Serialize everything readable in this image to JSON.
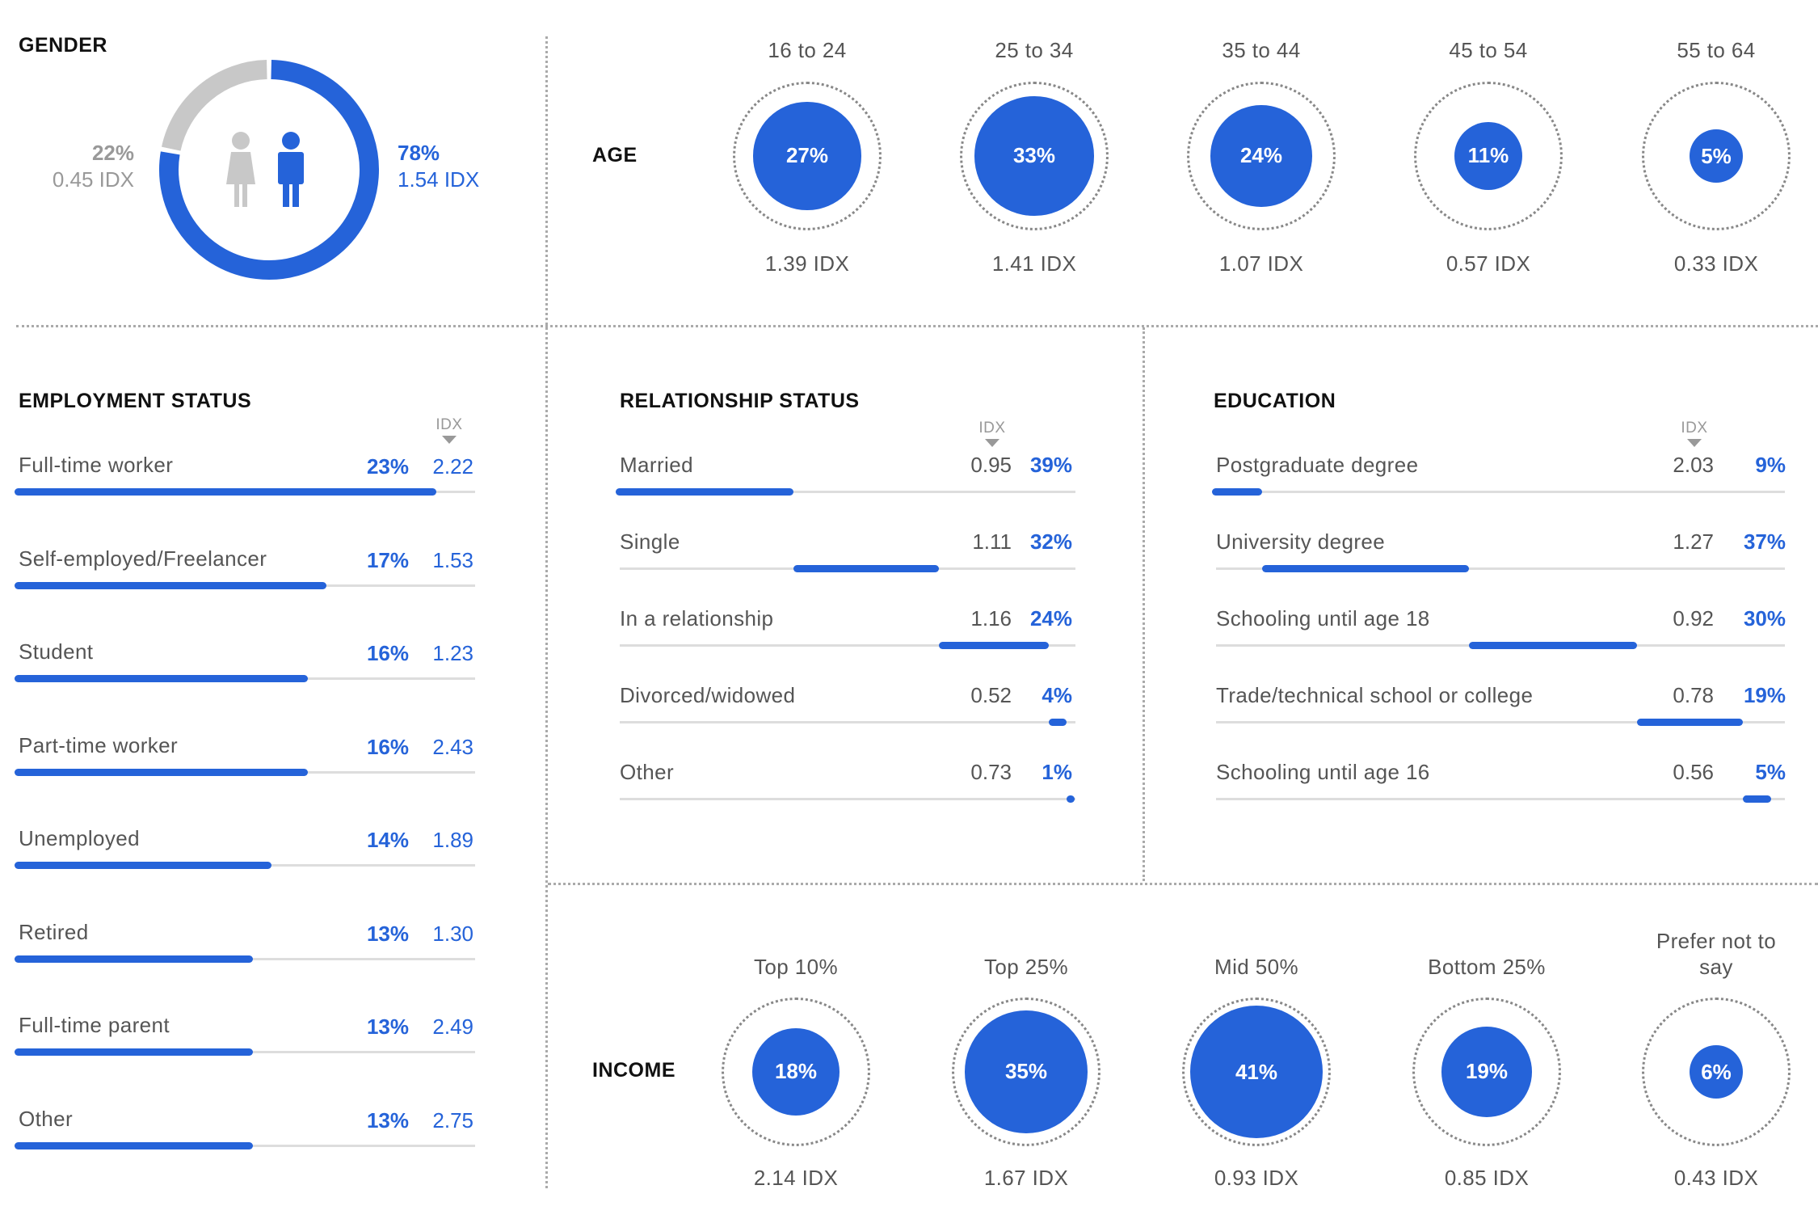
{
  "chart_data": [
    {
      "type": "pie",
      "title": "GENDER",
      "slices": [
        {
          "label": "22%",
          "value": 22,
          "idx": "0.45 IDX",
          "color": "#c8c8c8"
        },
        {
          "label": "78%",
          "value": 78,
          "idx": "1.54 IDX",
          "color": "#2563d9"
        }
      ]
    },
    {
      "type": "bubble",
      "title": "AGE",
      "categories": [
        "16 to 24",
        "25 to 34",
        "35 to 44",
        "45 to 54",
        "55 to 64"
      ],
      "values": [
        27,
        33,
        24,
        11,
        5
      ],
      "labels": [
        "27%",
        "33%",
        "24%",
        "11%",
        "5%"
      ],
      "idx": [
        "1.39 IDX",
        "1.41 IDX",
        "1.07 IDX",
        "0.57 IDX",
        "0.33 IDX"
      ]
    },
    {
      "type": "bar",
      "title": "EMPLOYMENT STATUS",
      "idx_header": "IDX",
      "categories": [
        "Full-time worker",
        "Self-employed/Freelancer",
        "Student",
        "Part-time worker",
        "Unemployed",
        "Retired",
        "Full-time parent",
        "Other"
      ],
      "values": [
        23,
        17,
        16,
        16,
        14,
        13,
        13,
        13
      ],
      "pct_labels": [
        "23%",
        "17%",
        "16%",
        "16%",
        "14%",
        "13%",
        "13%",
        "13%"
      ],
      "idx": [
        "2.22",
        "1.53",
        "1.23",
        "2.43",
        "1.89",
        "1.30",
        "2.49",
        "2.75"
      ]
    },
    {
      "type": "bar",
      "title": "RELATIONSHIP STATUS",
      "idx_header": "IDX",
      "categories": [
        "Married",
        "Single",
        "In a relationship",
        "Divorced/widowed",
        "Other"
      ],
      "values": [
        39,
        32,
        24,
        4,
        1
      ],
      "pct_labels": [
        "39%",
        "32%",
        "24%",
        "4%",
        "1%"
      ],
      "idx": [
        "0.95",
        "1.11",
        "1.16",
        "0.52",
        "0.73"
      ]
    },
    {
      "type": "bar",
      "title": "EDUCATION",
      "idx_header": "IDX",
      "categories": [
        "Postgraduate degree",
        "University degree",
        "Schooling until age 18",
        "Trade/technical school or college",
        "Schooling until age 16"
      ],
      "values": [
        9,
        37,
        30,
        19,
        5
      ],
      "pct_labels": [
        "9%",
        "37%",
        "30%",
        "19%",
        "5%"
      ],
      "idx": [
        "2.03",
        "1.27",
        "0.92",
        "0.78",
        "0.56"
      ]
    },
    {
      "type": "bubble",
      "title": "INCOME",
      "categories": [
        "Top 10%",
        "Top 25%",
        "Mid 50%",
        "Bottom 25%",
        "Prefer not to say"
      ],
      "values": [
        18,
        35,
        41,
        19,
        6
      ],
      "labels": [
        "18%",
        "35%",
        "41%",
        "19%",
        "6%"
      ],
      "idx": [
        "2.14 IDX",
        "1.67 IDX",
        "0.93 IDX",
        "0.85 IDX",
        "0.43 IDX"
      ]
    }
  ],
  "colors": {
    "accent": "#2563d9",
    "muted": "#c8c8c8",
    "track": "#dddddd"
  }
}
